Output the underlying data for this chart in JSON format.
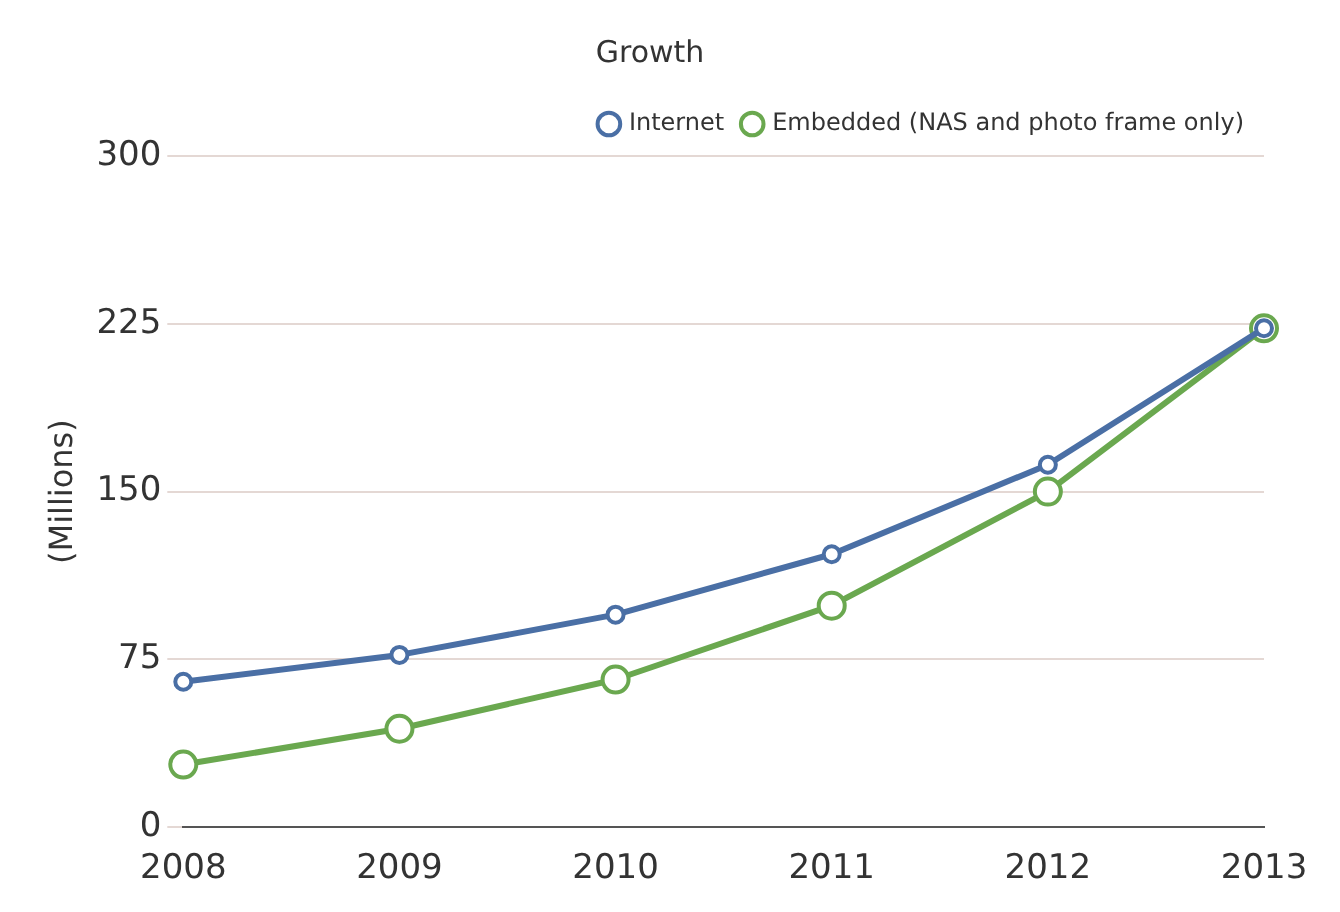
{
  "chart_data": {
    "type": "line",
    "title": "Growth",
    "ylabel": "(Millions)",
    "categories": [
      "2008",
      "2009",
      "2010",
      "2011",
      "2012",
      "2013"
    ],
    "series": [
      {
        "name": "Internet",
        "color": "#4a6fa5",
        "values": [
          65,
          77,
          95,
          122,
          162,
          223
        ]
      },
      {
        "name": "Embedded (NAS and photo frame only)",
        "color": "#6aa84f",
        "values": [
          28,
          44,
          66,
          99,
          150,
          223
        ]
      }
    ],
    "ylim": [
      0,
      300
    ],
    "yticks": [
      0,
      75,
      150,
      225,
      300
    ],
    "grid": "y",
    "legend": "top right",
    "marker": "circle",
    "line_style": "solid"
  }
}
